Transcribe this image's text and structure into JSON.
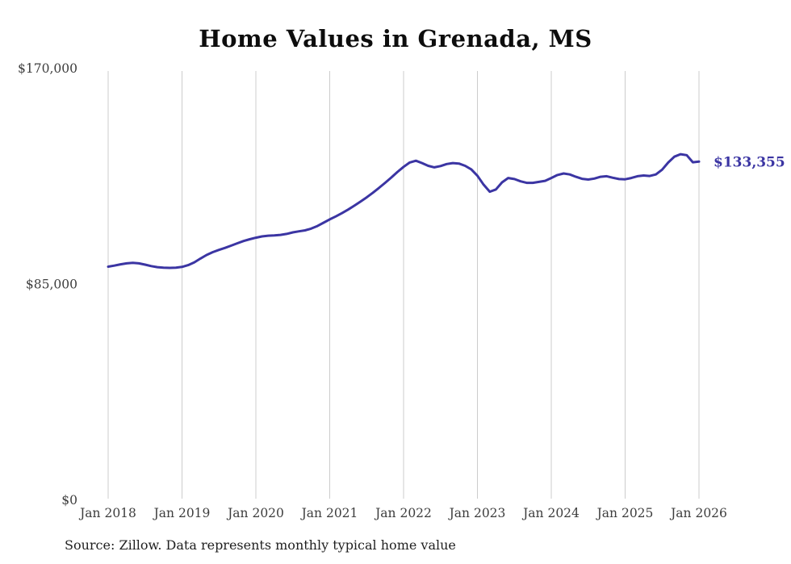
{
  "chart": {
    "title": "Home Values in Grenada, MS",
    "source": "Source: Zillow. Data represents monthly typical home value",
    "end_label": "$133,355"
  },
  "chart_data": {
    "type": "line",
    "title": "Home Values in Grenada, MS",
    "xlabel": "",
    "ylabel": "",
    "ylim": [
      0,
      170000
    ],
    "grid": "vertical-only",
    "grid_color": "#cccccc",
    "legend": "none",
    "line_color": "#3b35a3",
    "end_label": "$133,355",
    "final_value": 133355,
    "x_tick_labels": [
      "Jan 2018",
      "Jan 2019",
      "Jan 2020",
      "Jan 2021",
      "Jan 2022",
      "Jan 2023",
      "Jan 2024",
      "Jan 2025",
      "Jan 2026"
    ],
    "y_ticks": [
      {
        "value": 0,
        "label": "$0"
      },
      {
        "value": 85000,
        "label": "$85,000"
      },
      {
        "value": 170000,
        "label": "$170,000"
      }
    ],
    "series": [
      {
        "name": "Monthly typical home value",
        "start_month": "2018-01",
        "end_month": "2026-01",
        "values": [
          92000,
          92400,
          92900,
          93300,
          93500,
          93300,
          92800,
          92200,
          91800,
          91600,
          91500,
          91600,
          91900,
          92600,
          93700,
          95200,
          96600,
          97700,
          98600,
          99400,
          100300,
          101200,
          102100,
          102800,
          103400,
          103900,
          104200,
          104300,
          104500,
          104900,
          105500,
          105900,
          106300,
          107000,
          108000,
          109300,
          110600,
          111800,
          113100,
          114500,
          116000,
          117600,
          119300,
          121100,
          123000,
          125000,
          127100,
          129300,
          131300,
          133000,
          133700,
          132800,
          131700,
          131100,
          131600,
          132400,
          132800,
          132600,
          131700,
          130300,
          127800,
          124300,
          121500,
          122400,
          125200,
          126900,
          126500,
          125600,
          125000,
          125000,
          125400,
          125800,
          126900,
          128100,
          128700,
          128300,
          127400,
          126600,
          126300,
          126700,
          127400,
          127600,
          127000,
          126500,
          126400,
          126900,
          127600,
          127900,
          127700,
          128300,
          130200,
          133000,
          135300,
          136300,
          135900,
          133100,
          133355
        ]
      }
    ]
  }
}
